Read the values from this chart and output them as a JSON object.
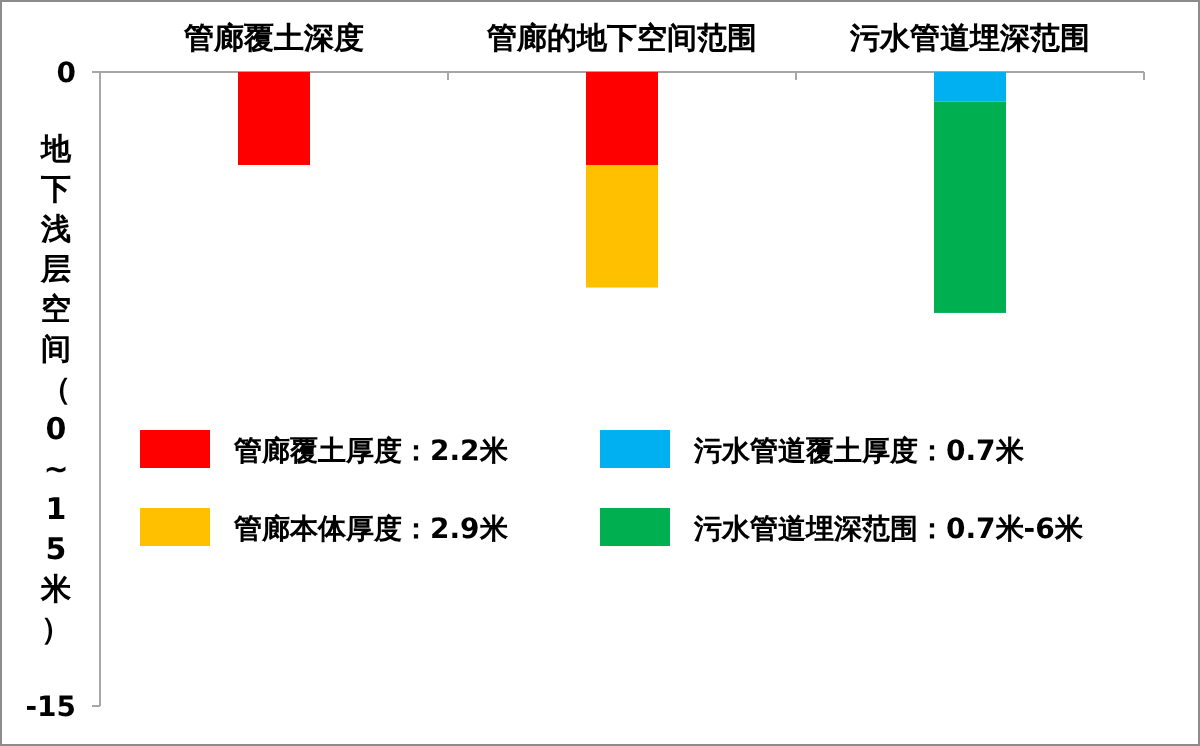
{
  "chart_data": {
    "type": "bar",
    "stacked": true,
    "ylabel": "地下浅层空间（0~15米）",
    "categories": [
      "管廊覆土深度",
      "管廊的地下空间范围",
      "污水管道埋深范围"
    ],
    "series": [
      {
        "name": "管廊覆土厚度：2.2米",
        "color": "#ff0000",
        "values": [
          -2.2,
          -2.2,
          null
        ]
      },
      {
        "name": "管廊本体厚度：2.9米",
        "color": "#ffc000",
        "values": [
          null,
          -2.9,
          null
        ]
      },
      {
        "name": "污水管道覆土厚度：0.7米",
        "color": "#00b0f0",
        "values": [
          null,
          null,
          -0.7
        ]
      },
      {
        "name": "污水管道埋深范围：0.7米-6米",
        "color": "#00b050",
        "values": [
          null,
          null,
          -5.0
        ]
      }
    ],
    "ylim": [
      -15,
      0
    ],
    "yticks": [
      0,
      -15
    ],
    "legend": "center",
    "grid": false
  }
}
